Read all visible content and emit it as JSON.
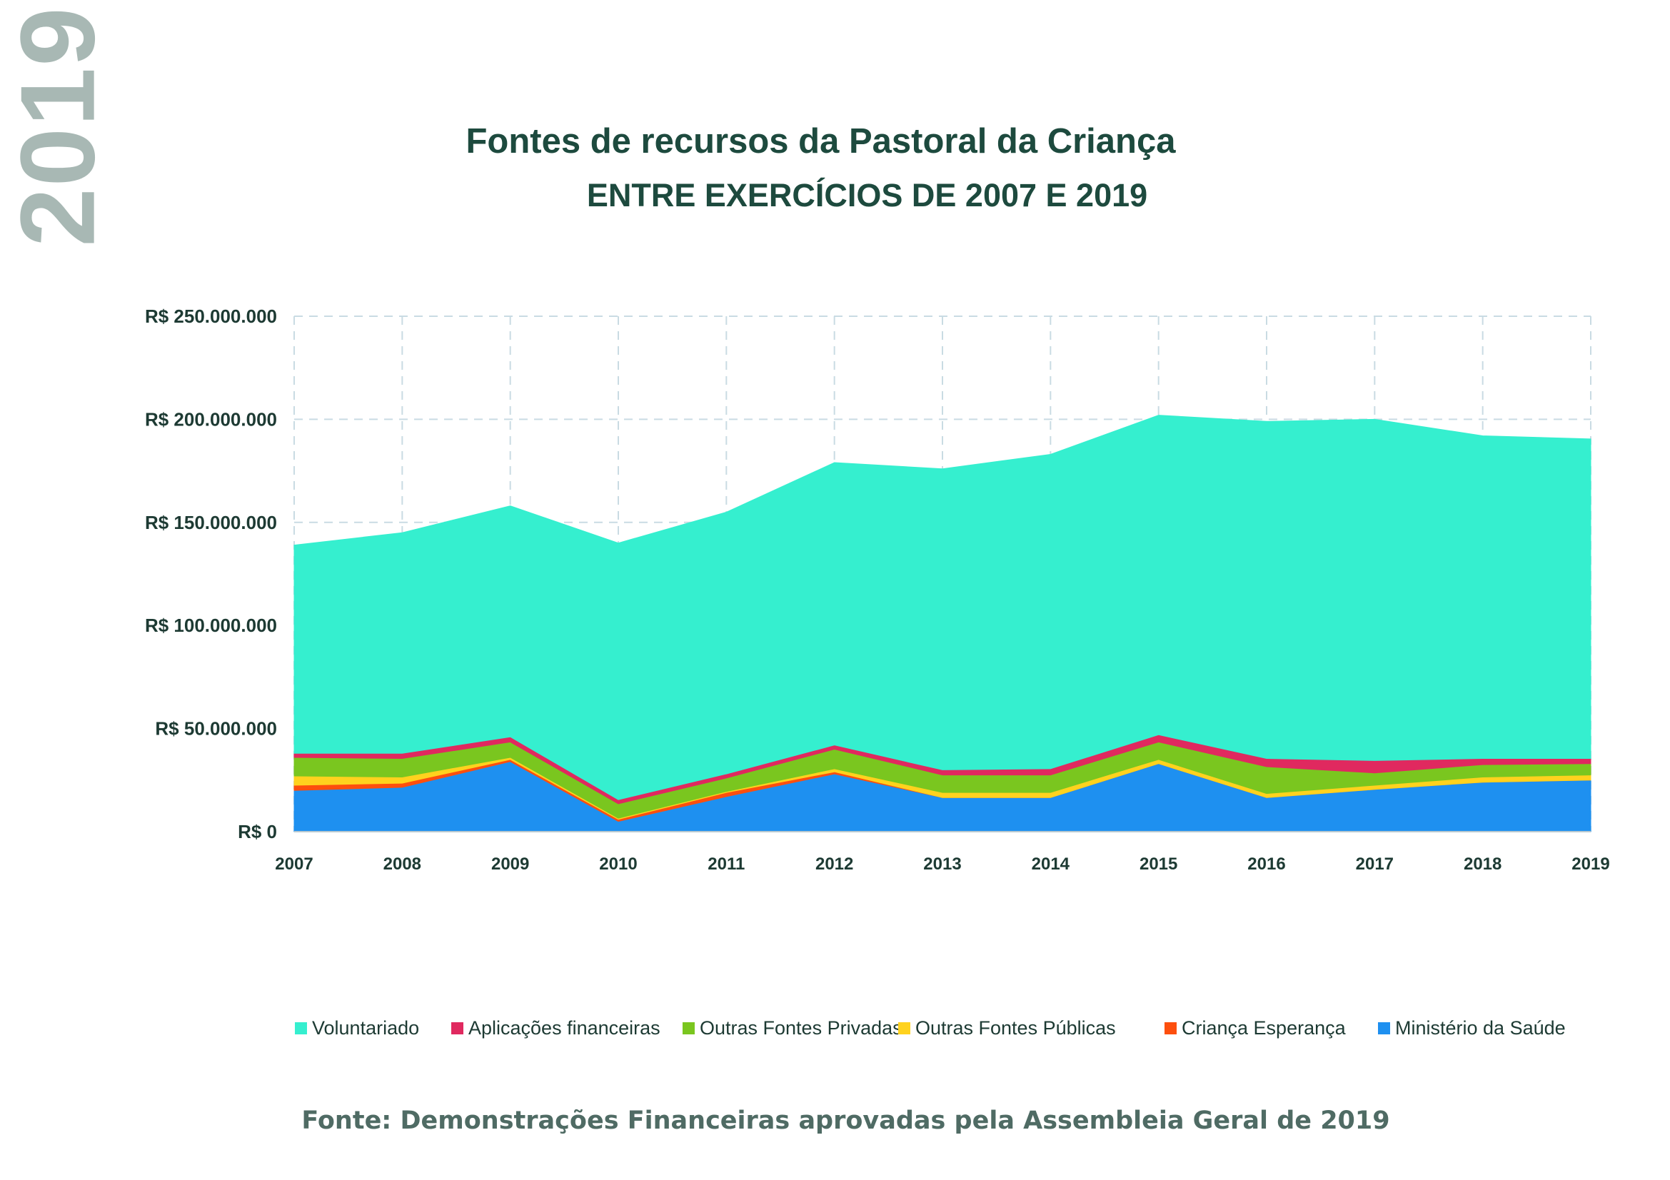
{
  "page": {
    "year_tag": "2019",
    "source": "Fonte: Demonstrações Financeiras aprovadas pela Assembleia Geral de 2019"
  },
  "chart_data": {
    "type": "area",
    "stacked": true,
    "title": "Fontes de recursos da Pastoral da Criança",
    "subtitle": "ENTRE EXERCÍCIOS DE 2007 E 2019",
    "xlabel": "",
    "ylabel": "",
    "x": [
      "2007",
      "2008",
      "2009",
      "2010",
      "2011",
      "2012",
      "2013",
      "2014",
      "2015",
      "2016",
      "2017",
      "2018",
      "2019"
    ],
    "ylim": [
      0,
      250000000
    ],
    "yticks": [
      0,
      50000000,
      100000000,
      150000000,
      200000000,
      250000000
    ],
    "ytick_labels": [
      "R$ 0",
      "R$ 50.000.000",
      "R$ 100.000.000",
      "R$ 150.000.000",
      "R$ 200.000.000",
      "R$ 250.000.000"
    ],
    "grid": "dashed",
    "legend_position": "bottom",
    "series": [
      {
        "name": "Ministério da Saúde",
        "color": "#1e90f0",
        "values": [
          20000000,
          21500000,
          34000000,
          5000000,
          17000000,
          28000000,
          16500000,
          16500000,
          33000000,
          16500000,
          20500000,
          24000000,
          25000000
        ]
      },
      {
        "name": "Criança Esperança",
        "color": "#fd4f0e",
        "values": [
          2500000,
          2000000,
          1000000,
          1000000,
          2000000,
          1000000,
          0,
          0,
          0,
          0,
          0,
          0,
          0
        ]
      },
      {
        "name": "Outras Fontes Públicas",
        "color": "#ffd21e",
        "values": [
          4500000,
          3000000,
          1000000,
          500000,
          500000,
          1500000,
          2500000,
          2500000,
          2000000,
          2000000,
          2000000,
          2500000,
          2500000
        ]
      },
      {
        "name": "Outras Fontes Privadas",
        "color": "#7ac61f",
        "values": [
          9000000,
          9000000,
          7500000,
          7000000,
          6500000,
          9500000,
          8500000,
          8500000,
          8500000,
          13000000,
          6000000,
          6000000,
          5500000
        ]
      },
      {
        "name": "Aplicações financeiras",
        "color": "#e0295f",
        "values": [
          2000000,
          2500000,
          2500000,
          2000000,
          2000000,
          2000000,
          2500000,
          3000000,
          3500000,
          4000000,
          6000000,
          3000000,
          2500000
        ]
      },
      {
        "name": "Voluntariado",
        "color": "#35efcf",
        "values": [
          101000000,
          107000000,
          112000000,
          124500000,
          127000000,
          137000000,
          146000000,
          152500000,
          155000000,
          163500000,
          165500000,
          156500000,
          155000000
        ]
      }
    ],
    "legend_order": [
      "Voluntariado",
      "Aplicações financeiras",
      "Outras Fontes Privadas",
      "Outras Fontes Públicas",
      "Criança Esperança",
      "Ministério da Saúde"
    ]
  }
}
